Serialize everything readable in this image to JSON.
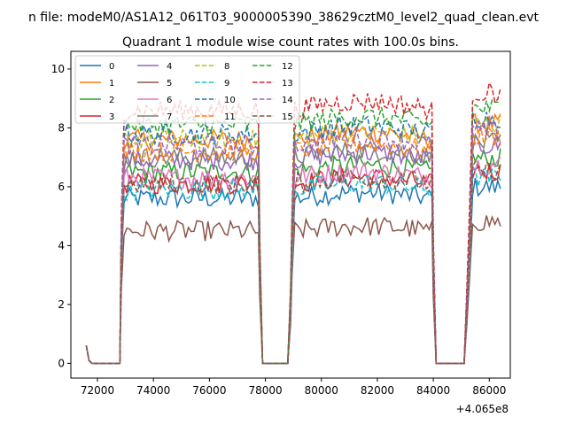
{
  "figure": {
    "suptitle": "n file: modeM0/AS1A12_061T03_9000005390_38629cztM0_level2_quad_clean.evt",
    "title": "Quadrant 1 module wise count rates with 100.0s bins."
  },
  "colors": [
    "#1f77b4",
    "#ff7f0e",
    "#2ca02c",
    "#d62728",
    "#9467bd",
    "#8c564b",
    "#e377c2",
    "#7f7f7f",
    "#bcbd22",
    "#17becf",
    "#1f77b4",
    "#ff7f0e",
    "#2ca02c",
    "#d62728",
    "#9467bd",
    "#8c564b"
  ],
  "chart_data": {
    "type": "line",
    "title": "Quadrant 1 module wise count rates with 100.0s bins.",
    "xlabel": "",
    "ylabel": "",
    "x_offset_label": "+4.065e8",
    "x_offset": 406500000,
    "xlim": [
      71050,
      86750
    ],
    "ylim": [
      -0.5,
      10.6
    ],
    "xticks": [
      72000,
      74000,
      76000,
      78000,
      80000,
      82000,
      84000,
      86000
    ],
    "yticks": [
      0,
      2,
      4,
      6,
      8,
      10
    ],
    "grid": false,
    "legend_position": "top-left",
    "legend_columns": 4,
    "series_names": [
      "0",
      "1",
      "2",
      "3",
      "4",
      "5",
      "6",
      "7",
      "8",
      "9",
      "10",
      "11",
      "12",
      "13",
      "14",
      "15"
    ],
    "series_dashed": [
      false,
      false,
      false,
      false,
      false,
      false,
      false,
      false,
      true,
      true,
      true,
      true,
      true,
      true,
      true,
      true
    ],
    "base_levels": [
      5.6,
      7.6,
      6.5,
      6.1,
      6.9,
      4.5,
      6.3,
      7.0,
      7.6,
      5.9,
      7.8,
      7.2,
      8.1,
      8.6,
      7.4,
      6.1
    ],
    "segments": [
      {
        "start": 71600,
        "end": 72850,
        "kind": "tail_low",
        "initial": 0.6
      },
      {
        "start": 72850,
        "end": 77800,
        "kind": "plateau",
        "drift": 0.0
      },
      {
        "start": 77800,
        "end": 78950,
        "kind": "gap"
      },
      {
        "start": 78950,
        "end": 84000,
        "kind": "plateau",
        "drift": 0.35
      },
      {
        "start": 84000,
        "end": 85300,
        "kind": "gap"
      },
      {
        "start": 85300,
        "end": 86450,
        "kind": "short",
        "peak": 1.07
      }
    ]
  }
}
